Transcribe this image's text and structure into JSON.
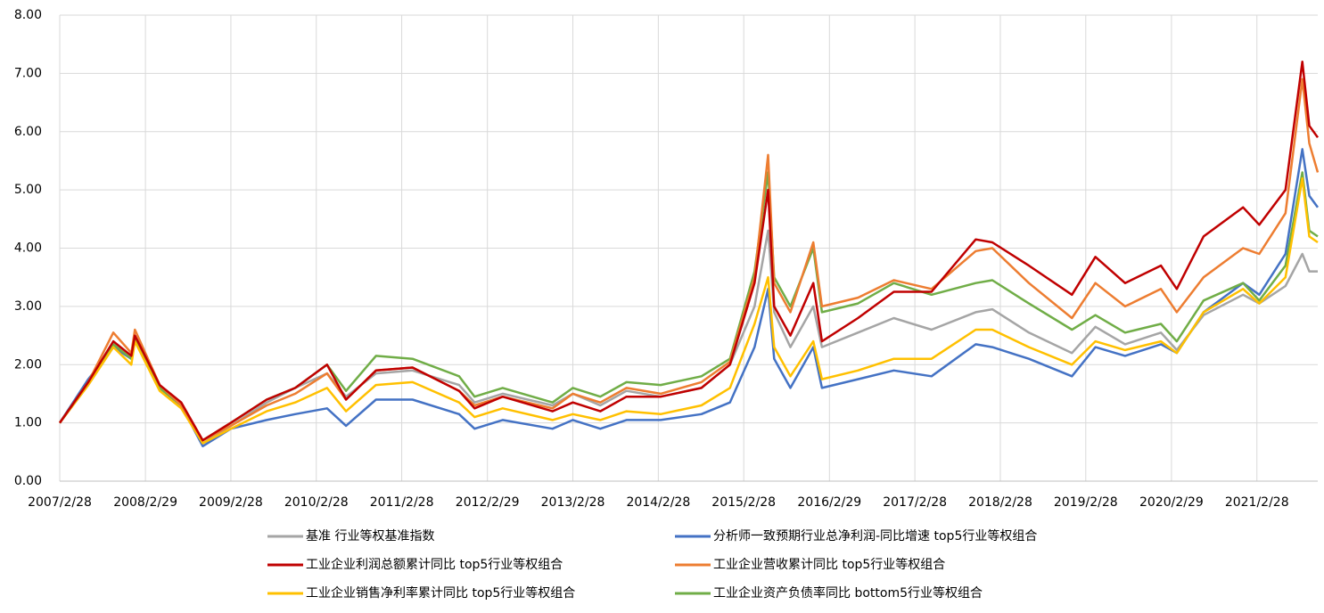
{
  "chart_data": {
    "type": "line",
    "x": [
      "2007/2/28",
      "2007/6/30",
      "2007/10/15",
      "2007/12/31",
      "2008/1/15",
      "2008/4/30",
      "2008/7/31",
      "2008/10/31",
      "2009/2/28",
      "2009/7/31",
      "2009/11/30",
      "2010/4/15",
      "2010/7/5",
      "2010/11/10",
      "2011/4/15",
      "2011/10/31",
      "2012/1/5",
      "2012/5/4",
      "2012/12/3",
      "2013/2/28",
      "2013/6/25",
      "2013/10/15",
      "2014/3/10",
      "2014/8/31",
      "2014/12/31",
      "2015/4/15",
      "2015/6/12",
      "2015/7/8",
      "2015/9/15",
      "2015/12/22",
      "2016/1/28",
      "2016/6/30",
      "2016/11/30",
      "2017/5/10",
      "2017/11/15",
      "2018/1/25",
      "2018/6/30",
      "2018/12/31",
      "2019/4/10",
      "2019/8/15",
      "2020/1/15",
      "2020/3/23",
      "2020/7/15",
      "2020/12/31",
      "2021/3/10",
      "2021/6/30",
      "2021/9/10",
      "2021/10/10",
      "2021/11/15"
    ],
    "series": [
      {
        "name": "基准 行业等权基准指数",
        "color": "#a5a5a5",
        "values": [
          1.0,
          1.65,
          2.3,
          2.1,
          2.45,
          1.6,
          1.3,
          0.65,
          0.95,
          1.35,
          1.6,
          1.85,
          1.45,
          1.85,
          1.9,
          1.65,
          1.35,
          1.5,
          1.3,
          1.5,
          1.3,
          1.55,
          1.45,
          1.6,
          2.0,
          3.0,
          4.3,
          2.9,
          2.3,
          3.0,
          2.3,
          2.55,
          2.8,
          2.6,
          2.9,
          2.95,
          2.55,
          2.2,
          2.65,
          2.35,
          2.55,
          2.25,
          2.85,
          3.2,
          3.05,
          3.35,
          3.9,
          3.6,
          3.6
        ]
      },
      {
        "name": "分析师一致预期行业总净利润-同比增速 top5行业等权组合",
        "color": "#4472c4",
        "values": [
          1.0,
          1.75,
          2.3,
          2.1,
          2.45,
          1.6,
          1.3,
          0.6,
          0.9,
          1.05,
          1.15,
          1.25,
          0.95,
          1.4,
          1.4,
          1.15,
          0.9,
          1.05,
          0.9,
          1.05,
          0.9,
          1.05,
          1.05,
          1.15,
          1.35,
          2.3,
          3.3,
          2.1,
          1.6,
          2.3,
          1.6,
          1.75,
          1.9,
          1.8,
          2.35,
          2.3,
          2.1,
          1.8,
          2.3,
          2.15,
          2.35,
          2.2,
          2.9,
          3.4,
          3.2,
          3.9,
          5.7,
          4.9,
          4.7
        ]
      },
      {
        "name": "工业企业利润总额累计同比 top5行业等权组合",
        "color": "#c00000",
        "values": [
          1.0,
          1.7,
          2.4,
          2.15,
          2.5,
          1.65,
          1.35,
          0.7,
          1.0,
          1.4,
          1.6,
          2.0,
          1.4,
          1.9,
          1.95,
          1.55,
          1.25,
          1.45,
          1.2,
          1.35,
          1.2,
          1.45,
          1.45,
          1.6,
          2.0,
          3.4,
          5.0,
          3.0,
          2.5,
          3.4,
          2.4,
          2.8,
          3.25,
          3.25,
          4.15,
          4.1,
          3.7,
          3.2,
          3.85,
          3.4,
          3.7,
          3.3,
          4.2,
          4.7,
          4.4,
          5.0,
          7.2,
          6.1,
          5.9
        ]
      },
      {
        "name": "工业企业营收累计同比 top5行业等权组合",
        "color": "#ed7d31",
        "values": [
          1.0,
          1.7,
          2.55,
          2.2,
          2.6,
          1.65,
          1.3,
          0.7,
          0.95,
          1.3,
          1.5,
          1.85,
          1.4,
          1.9,
          1.95,
          1.55,
          1.3,
          1.45,
          1.25,
          1.5,
          1.35,
          1.6,
          1.5,
          1.7,
          2.05,
          3.5,
          5.6,
          3.4,
          2.9,
          4.1,
          3.0,
          3.15,
          3.45,
          3.3,
          3.95,
          4.0,
          3.4,
          2.8,
          3.4,
          3.0,
          3.3,
          2.9,
          3.5,
          4.0,
          3.9,
          4.6,
          6.9,
          5.8,
          5.3
        ]
      },
      {
        "name": "工业企业销售净利率累计同比 top5行业等权组合",
        "color": "#ffc000",
        "values": [
          1.0,
          1.65,
          2.3,
          2.0,
          2.4,
          1.55,
          1.25,
          0.65,
          0.9,
          1.2,
          1.35,
          1.6,
          1.2,
          1.65,
          1.7,
          1.35,
          1.1,
          1.25,
          1.05,
          1.15,
          1.05,
          1.2,
          1.15,
          1.3,
          1.6,
          2.7,
          3.5,
          2.3,
          1.8,
          2.4,
          1.75,
          1.9,
          2.1,
          2.1,
          2.6,
          2.6,
          2.3,
          2.0,
          2.4,
          2.25,
          2.4,
          2.2,
          2.9,
          3.3,
          3.05,
          3.5,
          5.2,
          4.2,
          4.1
        ]
      },
      {
        "name": "工业企业资产负债率同比 bottom5行业等权组合",
        "color": "#70ad47",
        "values": [
          1.0,
          1.7,
          2.35,
          2.1,
          2.45,
          1.6,
          1.3,
          0.7,
          1.0,
          1.4,
          1.6,
          2.0,
          1.55,
          2.15,
          2.1,
          1.8,
          1.45,
          1.6,
          1.35,
          1.6,
          1.45,
          1.7,
          1.65,
          1.8,
          2.1,
          3.6,
          5.3,
          3.5,
          3.0,
          4.0,
          2.9,
          3.05,
          3.4,
          3.2,
          3.4,
          3.45,
          3.05,
          2.6,
          2.85,
          2.55,
          2.7,
          2.4,
          3.1,
          3.4,
          3.1,
          3.7,
          5.3,
          4.3,
          4.2
        ]
      }
    ],
    "xlim": [
      "2007/2/28",
      "2021/11/15"
    ],
    "xticks": [
      "2007/2/28",
      "2008/2/29",
      "2009/2/28",
      "2010/2/28",
      "2011/2/28",
      "2012/2/29",
      "2013/2/28",
      "2014/2/28",
      "2015/2/28",
      "2016/2/29",
      "2017/2/28",
      "2018/2/28",
      "2019/2/28",
      "2020/2/29",
      "2021/2/28"
    ],
    "ylim": [
      0,
      8
    ],
    "yticks": [
      {
        "value": 0,
        "label": "0.00"
      },
      {
        "value": 1,
        "label": "1.00"
      },
      {
        "value": 2,
        "label": "2.00"
      },
      {
        "value": 3,
        "label": "3.00"
      },
      {
        "value": 4,
        "label": "4.00"
      },
      {
        "value": 5,
        "label": "5.00"
      },
      {
        "value": 6,
        "label": "6.00"
      },
      {
        "value": 7,
        "label": "7.00"
      },
      {
        "value": 8,
        "label": "8.00"
      }
    ],
    "grid": true,
    "legend": "bottom"
  }
}
